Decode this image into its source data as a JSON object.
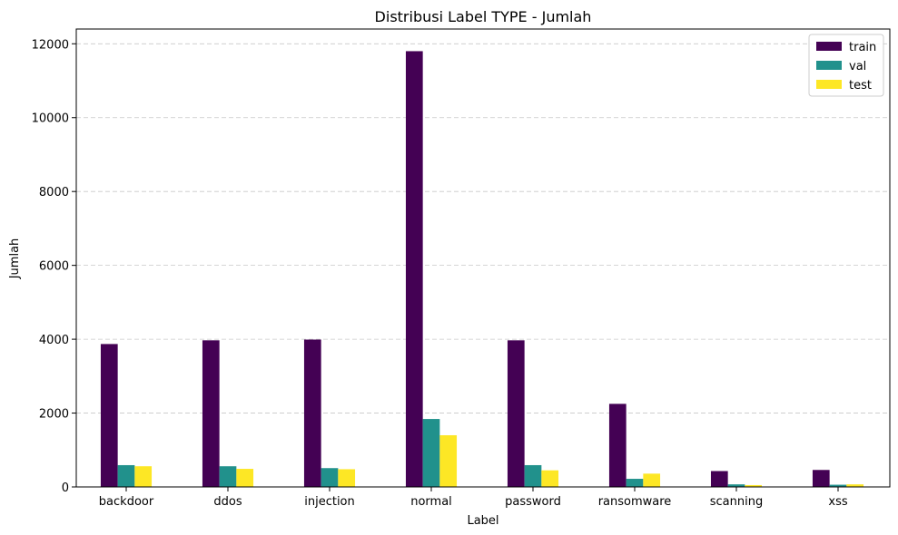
{
  "chart_data": {
    "type": "bar",
    "title": "Distribusi Label TYPE - Jumlah",
    "xlabel": "Label",
    "ylabel": "Jumlah",
    "categories": [
      "backdoor",
      "ddos",
      "injection",
      "normal",
      "password",
      "ransomware",
      "scanning",
      "xss"
    ],
    "series": [
      {
        "name": "train",
        "color": "#440154",
        "values": [
          3870,
          3970,
          3990,
          11800,
          3970,
          2250,
          430,
          460
        ]
      },
      {
        "name": "val",
        "color": "#21918c",
        "values": [
          590,
          560,
          510,
          1840,
          590,
          220,
          70,
          60
        ]
      },
      {
        "name": "test",
        "color": "#fde725",
        "values": [
          560,
          490,
          480,
          1400,
          450,
          360,
          50,
          70
        ]
      }
    ],
    "ylim": [
      0,
      12400
    ],
    "yticks": [
      0,
      2000,
      4000,
      6000,
      8000,
      10000,
      12000
    ],
    "grid": "y-dashed",
    "legend_position": "top-right"
  }
}
